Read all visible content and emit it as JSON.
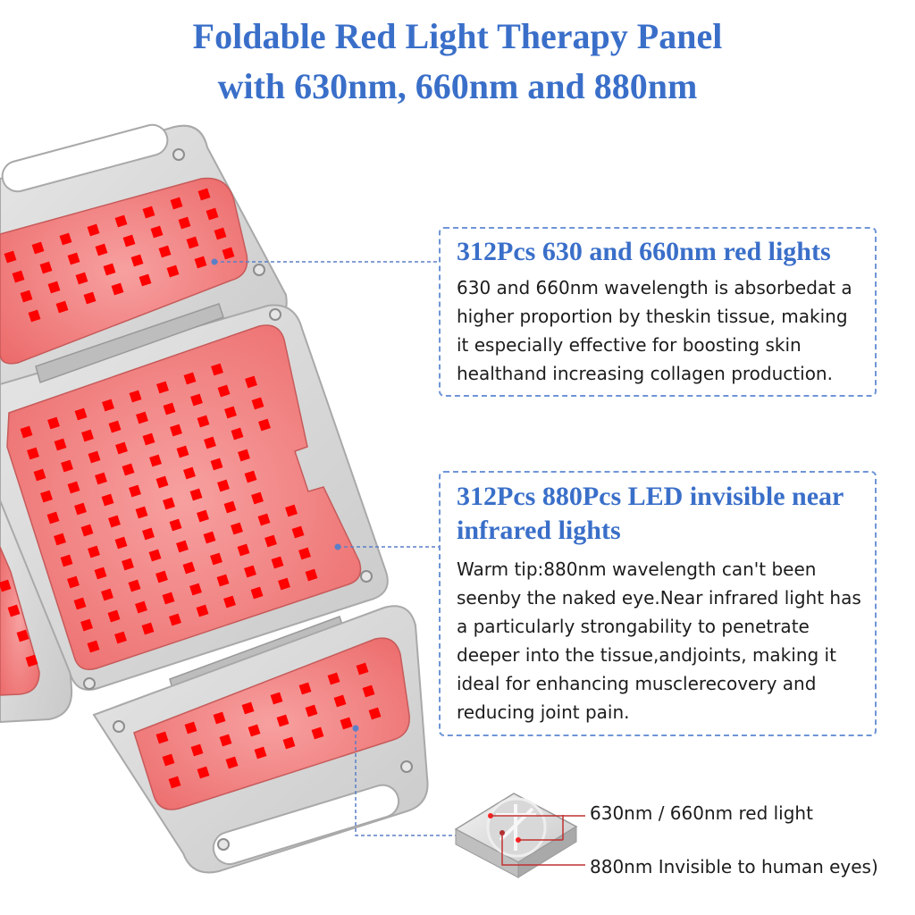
{
  "header": {
    "title_line1": "Foldable Red Light Therapy Panel",
    "title_line2": "with 630nm, 660nm and 880nm"
  },
  "callouts": [
    {
      "heading": "312Pcs 630 and 660nm red lights",
      "body": "630 and 660nm wavelength is absorbedat a higher proportion by theskin tissue, making it especially effective for boosting skin healthand increasing collagen production."
    },
    {
      "heading": "312Pcs 880Pcs LED invisible near infrared lights",
      "body": "Warm tip:880nm wavelength can't been seenby the naked eye.Near infrared light has a particularly strongability to penetrate deeper into the tissue,andjoints, making it ideal for enhancing musclerecovery and reducing joint pain."
    }
  ],
  "led_legend": {
    "red_label": "630nm / 660nm red light",
    "infrared_label": "880nm Invisible to human eyes)"
  },
  "colors": {
    "title_blue": "#3a6fc9",
    "panel_frame": "#d9d9d9",
    "led_pad": "#f27d7d",
    "led": "#ff0000",
    "connector": "#5b7fc7"
  }
}
